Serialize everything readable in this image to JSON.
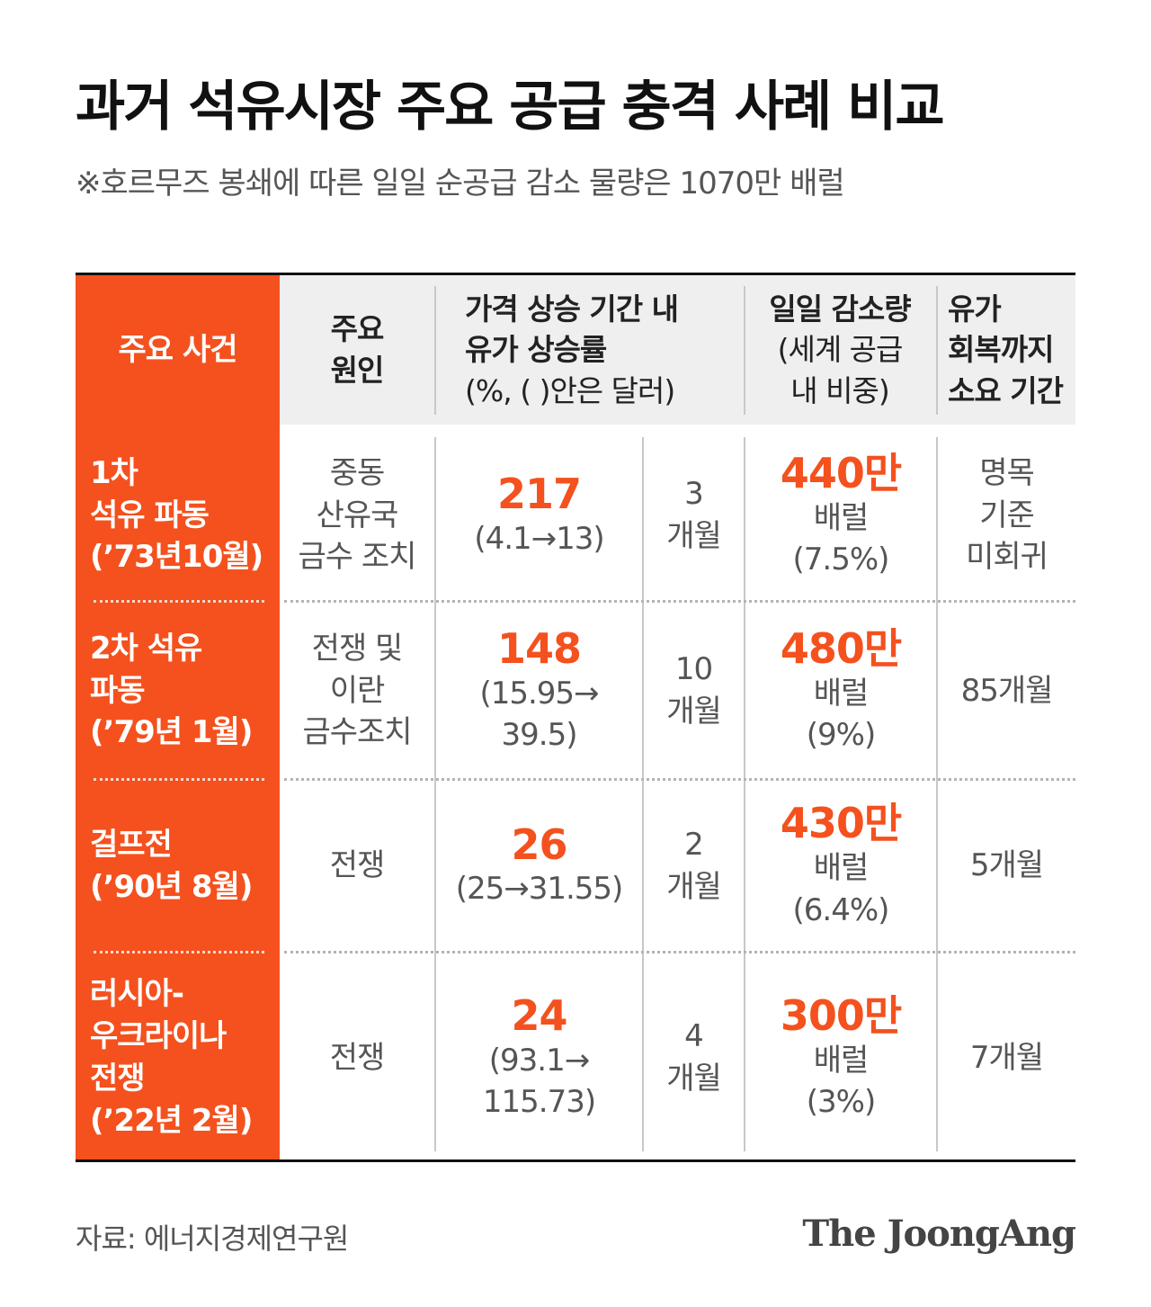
{
  "title": "과거 석유시장 주요 공급 충격 사례 비교",
  "subtitle": "※호르무즈 봉쇄에 따른 일일 순공급 감소 물량은 1070만 배럴",
  "header": {
    "event": "주요 사건",
    "cause": [
      "주요",
      "원인"
    ],
    "rate": [
      "가격 상승 기간 내",
      "유가 상승률"
    ],
    "rate_sub": "(%, ( )안은 달러)",
    "decrease": "일일 감소량",
    "decrease_sub": [
      "(세계 공급",
      "내 비중)"
    ],
    "recovery": [
      "유가",
      "회복까지",
      "소요 기간"
    ]
  },
  "rows": [
    {
      "event": [
        "1차",
        "석유 파동",
        "(’73년10월)"
      ],
      "cause": [
        "중동",
        "산유국",
        "금수 조치"
      ],
      "rate": "217",
      "price": [
        "(4.1→13)"
      ],
      "period": [
        "3",
        "개월"
      ],
      "amount": "440만",
      "unit": "배럴",
      "share": "(7.5%)",
      "recovery": [
        "명목",
        "기준",
        "미회귀"
      ]
    },
    {
      "event": [
        "2차 석유",
        "파동",
        "(’79년 1월)"
      ],
      "cause": [
        "전쟁 및",
        "이란",
        "금수조치"
      ],
      "rate": "148",
      "price": [
        "(15.95→",
        "39.5)"
      ],
      "period": [
        "10",
        "개월"
      ],
      "amount": "480만",
      "unit": "배럴",
      "share": "(9%)",
      "recovery": [
        "85개월"
      ]
    },
    {
      "event": [
        "걸프전",
        "(’90년 8월)"
      ],
      "cause": [
        "전쟁"
      ],
      "rate": "26",
      "price": [
        "(25→31.55)"
      ],
      "period": [
        "2",
        "개월"
      ],
      "amount": "430만",
      "unit": "배럴",
      "share": "(6.4%)",
      "recovery": [
        "5개월"
      ]
    },
    {
      "event": [
        "러시아-",
        "우크라이나",
        "전쟁",
        "(’22년 2월)"
      ],
      "cause": [
        "전쟁"
      ],
      "rate": "24",
      "price": [
        "(93.1→",
        "115.73)"
      ],
      "period": [
        "4",
        "개월"
      ],
      "amount": "300만",
      "unit": "배럴",
      "share": "(3%)",
      "recovery": [
        "7개월"
      ]
    }
  ],
  "source": "자료: 에너지경제연구원",
  "logo": "The JoongAng",
  "colors": {
    "accent": "#f4511e",
    "header_bg": "#efefef",
    "text": "#555555"
  }
}
